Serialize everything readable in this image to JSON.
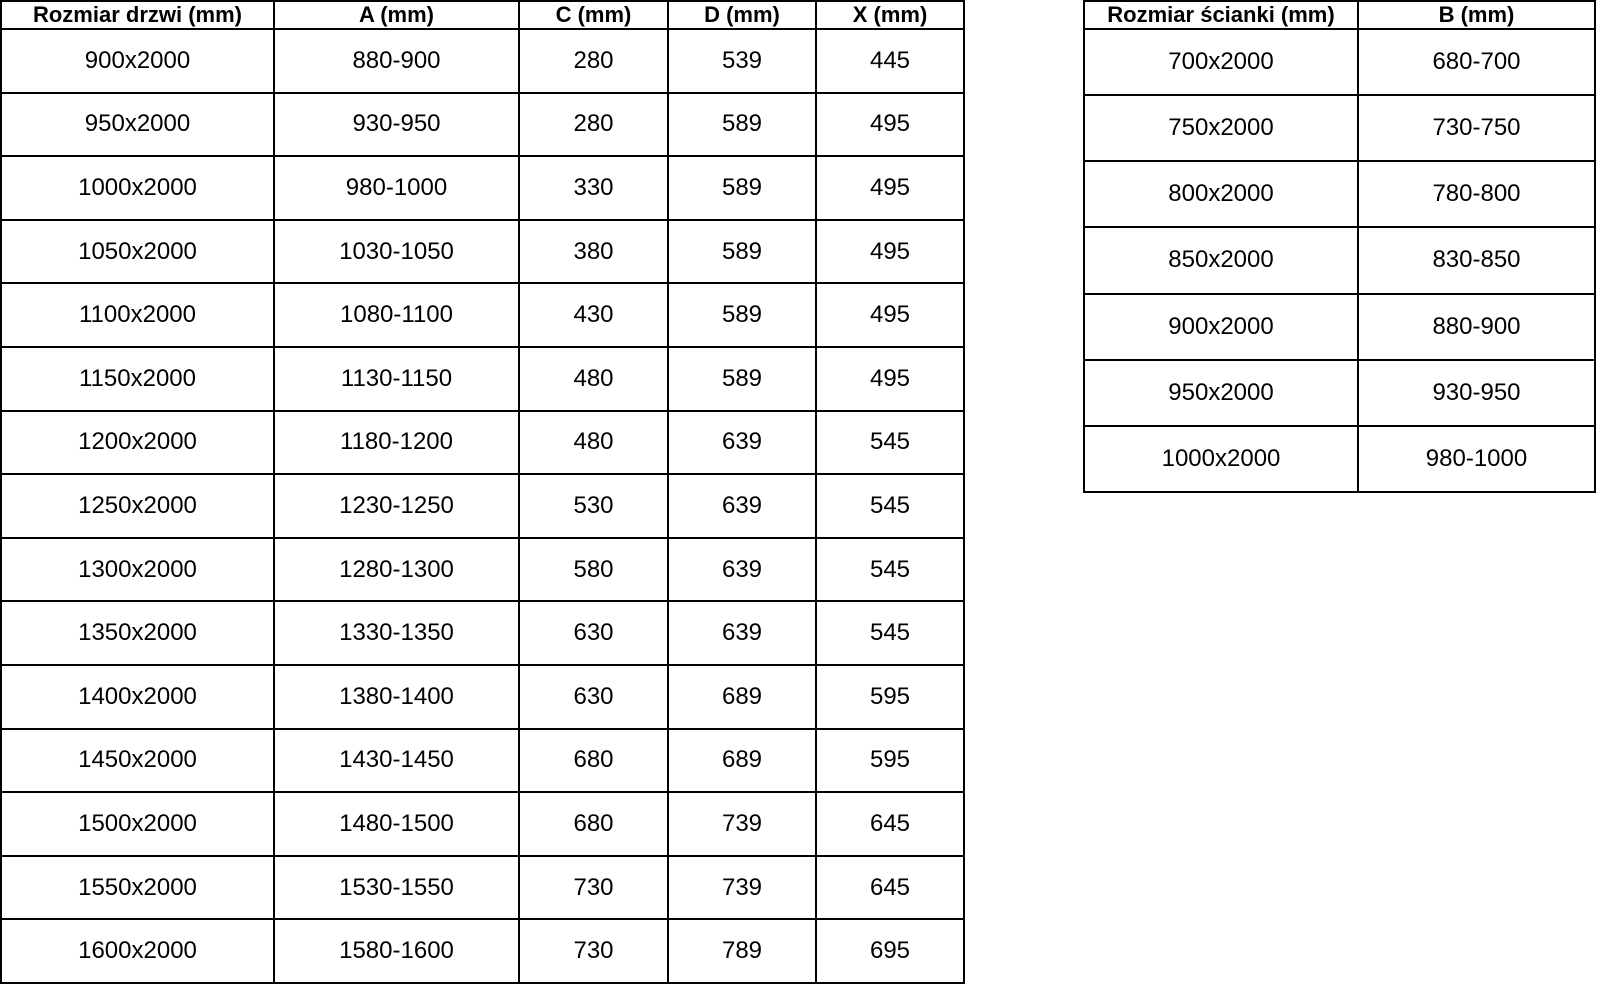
{
  "colors": {
    "background": "#ffffff",
    "text": "#000000",
    "border": "#000000"
  },
  "door_table": {
    "headers": [
      "Rozmiar drzwi (mm)",
      "A (mm)",
      "C (mm)",
      "D (mm)",
      "X (mm)"
    ],
    "rows": [
      [
        "900x2000",
        "880-900",
        "280",
        "539",
        "445"
      ],
      [
        "950x2000",
        "930-950",
        "280",
        "589",
        "495"
      ],
      [
        "1000x2000",
        "980-1000",
        "330",
        "589",
        "495"
      ],
      [
        "1050x2000",
        "1030-1050",
        "380",
        "589",
        "495"
      ],
      [
        "1100x2000",
        "1080-1100",
        "430",
        "589",
        "495"
      ],
      [
        "1150x2000",
        "1130-1150",
        "480",
        "589",
        "495"
      ],
      [
        "1200x2000",
        "1180-1200",
        "480",
        "639",
        "545"
      ],
      [
        "1250x2000",
        "1230-1250",
        "530",
        "639",
        "545"
      ],
      [
        "1300x2000",
        "1280-1300",
        "580",
        "639",
        "545"
      ],
      [
        "1350x2000",
        "1330-1350",
        "630",
        "639",
        "545"
      ],
      [
        "1400x2000",
        "1380-1400",
        "630",
        "689",
        "595"
      ],
      [
        "1450x2000",
        "1430-1450",
        "680",
        "689",
        "595"
      ],
      [
        "1500x2000",
        "1480-1500",
        "680",
        "739",
        "645"
      ],
      [
        "1550x2000",
        "1530-1550",
        "730",
        "739",
        "645"
      ],
      [
        "1600x2000",
        "1580-1600",
        "730",
        "789",
        "695"
      ]
    ]
  },
  "wall_table": {
    "headers": [
      "Rozmiar ścianki (mm)",
      "B (mm)"
    ],
    "rows": [
      [
        "700x2000",
        "680-700"
      ],
      [
        "750x2000",
        "730-750"
      ],
      [
        "800x2000",
        "780-800"
      ],
      [
        "850x2000",
        "830-850"
      ],
      [
        "900x2000",
        "880-900"
      ],
      [
        "950x2000",
        "930-950"
      ],
      [
        "1000x2000",
        "980-1000"
      ]
    ]
  }
}
